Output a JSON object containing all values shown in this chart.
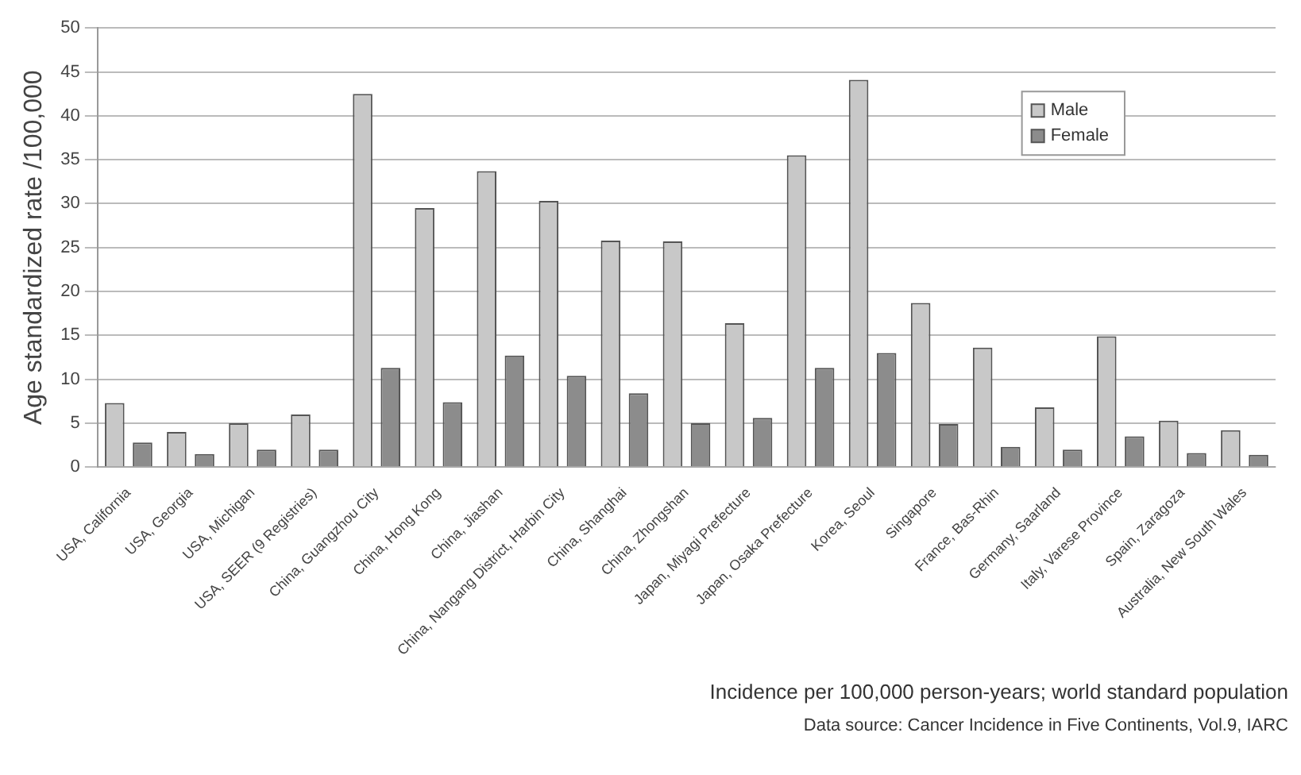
{
  "chart_data": {
    "type": "bar",
    "ylabel": "Age standardized rate /100,000",
    "categories": [
      "USA, California",
      "USA, Georgia",
      "USA, Michigan",
      "USA, SEER (9 Registries)",
      "China, Guangzhou City",
      "China, Hong Kong",
      "China, Jiashan",
      "China, Nangang District, Harbin City",
      "China, Shanghai",
      "China, Zhongshan",
      "Japan, Miyagi Prefecture",
      "Japan, Osaka Prefecture",
      "Korea, Seoul",
      "Singapore",
      "France, Bas-Rhin",
      "Germany, Saarland",
      "Italy, Varese Province",
      "Spain, Zaragoza",
      "Australia, New South Wales"
    ],
    "series": [
      {
        "name": "Male",
        "color": "#c8c8c8",
        "values": [
          7.3,
          4,
          5,
          6,
          42.5,
          29.5,
          33.7,
          30.3,
          25.8,
          25.7,
          16.4,
          35.5,
          44.1,
          18.7,
          13.6,
          6.8,
          14.9,
          5.3,
          4.2
        ]
      },
      {
        "name": "Female",
        "color": "#8c8c8c",
        "values": [
          2.8,
          1.5,
          2,
          2,
          11.3,
          7.4,
          12.7,
          10.4,
          8.4,
          5,
          5.6,
          11.3,
          13,
          4.9,
          2.3,
          2,
          3.5,
          1.6,
          1.4
        ]
      }
    ],
    "ylim": [
      0,
      50
    ],
    "yticks": [
      0,
      5,
      10,
      15,
      20,
      25,
      30,
      35,
      40,
      45,
      50
    ],
    "grid": "y",
    "legend": "top right",
    "annotations": [
      "Incidence per 100,000 person-years; world standard population",
      "Data source: Cancer Incidence in Five Continents, Vol.9, IARC"
    ]
  }
}
